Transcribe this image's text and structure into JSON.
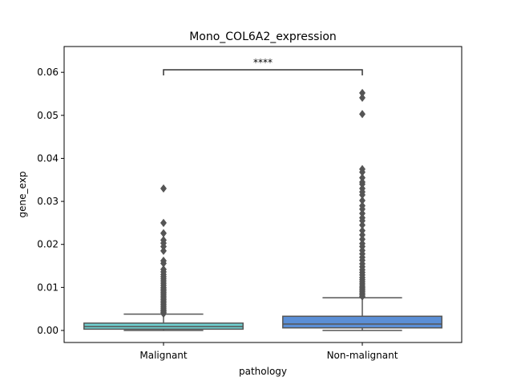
{
  "chart_data": {
    "type": "box",
    "title": "Mono_COL6A2_expression",
    "xlabel": "pathology",
    "ylabel": "gene_exp",
    "categories": [
      "Malignant",
      "Non-malignant"
    ],
    "ylim": [
      -0.0028,
      0.066
    ],
    "yticks": [
      0.0,
      0.01,
      0.02,
      0.03,
      0.04,
      0.05,
      0.06
    ],
    "ytick_labels": [
      "0.00",
      "0.01",
      "0.02",
      "0.03",
      "0.04",
      "0.05",
      "0.06"
    ],
    "boxes": [
      {
        "category": "Malignant",
        "color": "#6fd0d0",
        "whisker_low": 0.0,
        "q1": 0.0003,
        "median": 0.0009,
        "q3": 0.0017,
        "whisker_high": 0.0038,
        "outliers": [
          0.033,
          0.025,
          0.0226,
          0.021,
          0.0203,
          0.0195,
          0.0185,
          0.0162,
          0.0156,
          0.0142,
          0.0136,
          0.013,
          0.0125,
          0.012,
          0.0115,
          0.011,
          0.0105,
          0.01,
          0.0096,
          0.0092,
          0.0088,
          0.0084,
          0.008,
          0.0076,
          0.0072,
          0.0068,
          0.0064,
          0.006,
          0.0056,
          0.0052,
          0.0048,
          0.0045,
          0.0042,
          0.0039
        ]
      },
      {
        "category": "Non-malignant",
        "color": "#5b8fd6",
        "whisker_low": 0.0,
        "q1": 0.0006,
        "median": 0.0015,
        "q3": 0.0033,
        "whisker_high": 0.0076,
        "outliers": [
          0.0552,
          0.0541,
          0.0503,
          0.0375,
          0.0368,
          0.0355,
          0.0345,
          0.034,
          0.033,
          0.0322,
          0.0315,
          0.0302,
          0.029,
          0.0282,
          0.0272,
          0.0262,
          0.0255,
          0.0245,
          0.0232,
          0.0222,
          0.0212,
          0.0202,
          0.0195,
          0.0186,
          0.0178,
          0.017,
          0.0163,
          0.0155,
          0.0148,
          0.0141,
          0.0135,
          0.0129,
          0.0123,
          0.0118,
          0.0113,
          0.0108,
          0.0103,
          0.0099,
          0.0095,
          0.0091,
          0.0087,
          0.0083,
          0.0079
        ]
      }
    ],
    "annotation": {
      "text": "****",
      "between": [
        "Malignant",
        "Non-malignant"
      ],
      "y": 0.0606
    },
    "grid": false,
    "legend": "none"
  }
}
